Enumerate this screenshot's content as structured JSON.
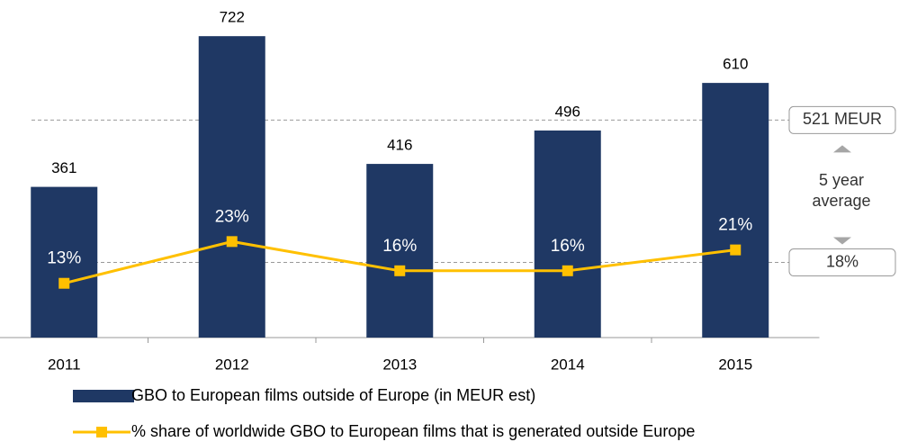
{
  "chart_data": {
    "type": "bar",
    "categories": [
      "2011",
      "2012",
      "2013",
      "2014",
      "2015"
    ],
    "series": [
      {
        "name": "GBO to European films outside of Europe (in MEUR est)",
        "type": "bar",
        "color": "#1f3864",
        "values": [
          361,
          722,
          416,
          496,
          610
        ]
      },
      {
        "name": "% share of worldwide GBO to European films that is generated outside Europe",
        "type": "line",
        "axis": "y2",
        "color": "#ffc000",
        "values": [
          13,
          23,
          16,
          16,
          21
        ],
        "value_labels": [
          "13%",
          "23%",
          "16%",
          "16%",
          "21%"
        ]
      }
    ],
    "ylim": [
      0,
      800
    ],
    "y2lim": [
      0,
      80
    ],
    "average_lines": [
      {
        "value": 521,
        "label": "521 MEUR",
        "axis": "y"
      },
      {
        "value": 18,
        "label": "18%",
        "axis": "y2"
      }
    ],
    "average_note": "5 year average",
    "legend": "bottom"
  }
}
